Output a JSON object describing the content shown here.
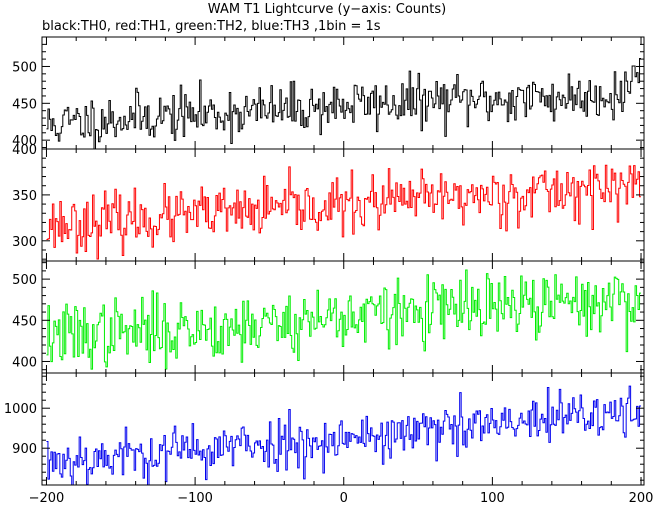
{
  "chart_data": {
    "type": "line",
    "title": "WAM T1 Lightcurve (y−axis: Counts)",
    "subtitle": "black:TH0, red:TH1, green:TH2, blue:TH3 ,1bin = 1s",
    "x_ticks": [
      "−200",
      "−100",
      "0",
      "100",
      "200"
    ],
    "xlim": [
      -203,
      202
    ],
    "grid": false,
    "panels": [
      {
        "name": "TH0",
        "color": "#000000",
        "ylim": [
          388,
          540
        ],
        "y_ticks": [
          400,
          450,
          500
        ],
        "y_labels": [
          "400",
          "450",
          "500"
        ],
        "trend": {
          "x": [
            -200,
            -150,
            -100,
            -50,
            0,
            50,
            100,
            150,
            190,
            198
          ],
          "y": [
            420,
            430,
            435,
            440,
            448,
            452,
            455,
            458,
            465,
            500
          ]
        },
        "noise": 17,
        "seed": 11
      },
      {
        "name": "TH1",
        "color": "#ff0000",
        "ylim": [
          278,
          400
        ],
        "y_ticks": [
          300,
          350,
          400
        ],
        "y_labels": [
          "300",
          "350",
          "400"
        ],
        "trend": {
          "x": [
            -200,
            -150,
            -100,
            -50,
            0,
            50,
            100,
            150,
            200
          ],
          "y": [
            318,
            322,
            327,
            333,
            338,
            345,
            350,
            355,
            360
          ]
        },
        "noise": 15,
        "seed": 23
      },
      {
        "name": "TH2",
        "color": "#00ee00",
        "ylim": [
          386,
          522
        ],
        "y_ticks": [
          400,
          450,
          500
        ],
        "y_labels": [
          "400",
          "450",
          "500"
        ],
        "trend": {
          "x": [
            -200,
            -150,
            -100,
            -50,
            0,
            50,
            100,
            150,
            200
          ],
          "y": [
            430,
            435,
            440,
            445,
            455,
            460,
            465,
            470,
            475
          ]
        },
        "noise": 20,
        "seed": 37
      },
      {
        "name": "TH3",
        "color": "#0000ee",
        "ylim": [
          808,
          1088
        ],
        "y_ticks": [
          900,
          1000
        ],
        "y_labels": [
          "900",
          "1000"
        ],
        "trend": {
          "x": [
            -200,
            -150,
            -100,
            -50,
            0,
            50,
            100,
            150,
            200
          ],
          "y": [
            870,
            880,
            895,
            910,
            925,
            940,
            955,
            975,
            990
          ]
        },
        "noise": 33,
        "seed": 53
      }
    ]
  }
}
